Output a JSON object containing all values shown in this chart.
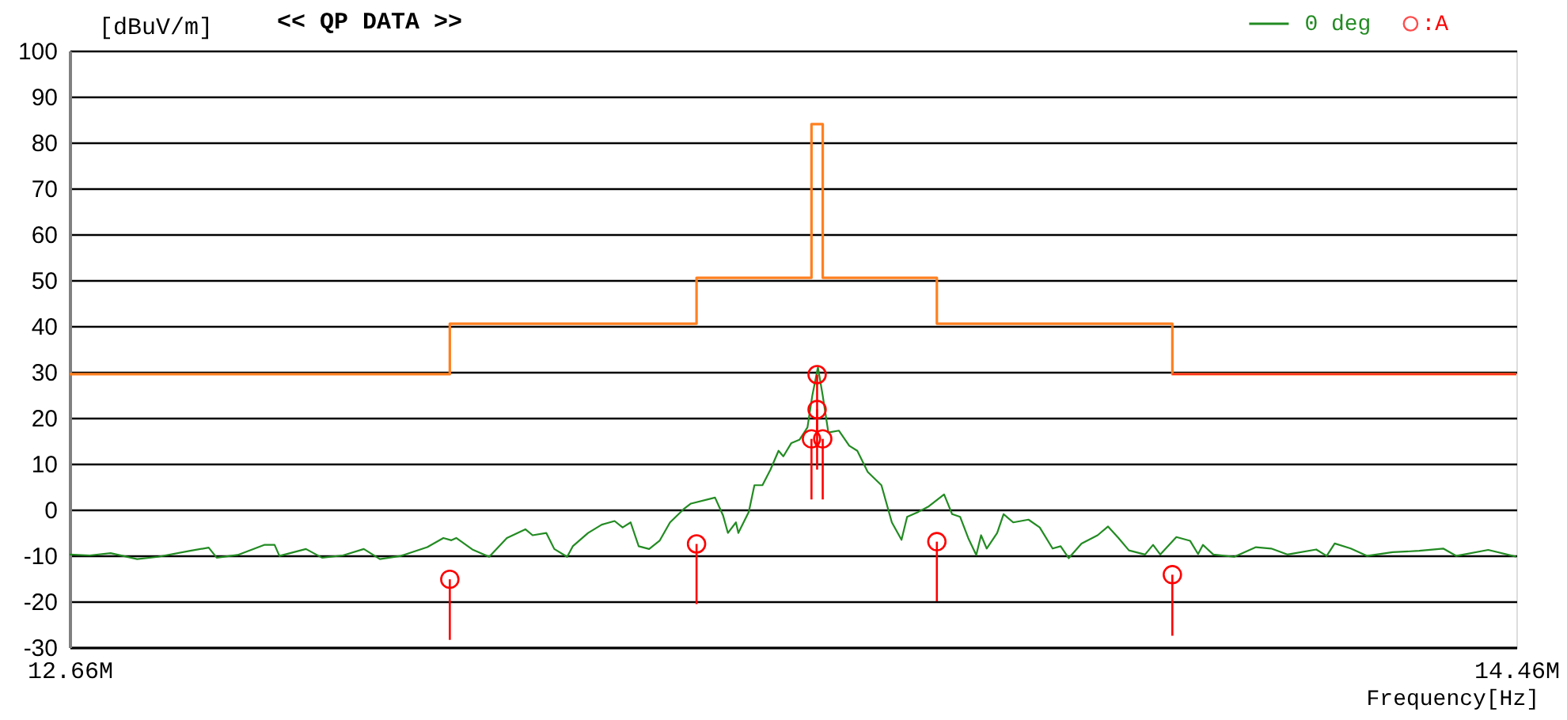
{
  "chart_data": {
    "type": "line",
    "title": "<< QP DATA >>",
    "ylabel": "[dBuV/m]",
    "xlabel": "Frequency[Hz]",
    "xlim": [
      12660000,
      14460000
    ],
    "xticks": [
      {
        "value": 12660000,
        "label": "12.66M"
      },
      {
        "value": 14460000,
        "label": "14.46M"
      }
    ],
    "ylim": [
      -30,
      100
    ],
    "yticks": [
      -30,
      -20,
      -10,
      0,
      10,
      20,
      30,
      40,
      50,
      60,
      70,
      80,
      90,
      100
    ],
    "grid": "y",
    "legend": "top right",
    "series": [
      {
        "type": "step",
        "color": "#ff8020",
        "x": [
          12660000,
          13133000,
          13440000,
          13583000,
          13597000,
          13739000,
          14032000,
          14460000
        ],
        "values": [
          29.5,
          40.5,
          50.5,
          84,
          50.5,
          40.5,
          29.5,
          29.5
        ]
      },
      {
        "color": "#ff3322",
        "x": [
          14032000,
          14460000
        ],
        "values": [
          29.5,
          29.5
        ]
      },
      {
        "name": "0 deg",
        "color": "#228b22",
        "x": [
          12660000,
          12685000,
          12711000,
          12744000,
          12770000,
          12810000,
          12833000,
          12843000,
          12869000,
          12902000,
          12915000,
          12921000,
          12954000,
          12974000,
          13000000,
          13026000,
          13046000,
          13072000,
          13105000,
          13125000,
          13135000,
          13141000,
          13161000,
          13182000,
          13204000,
          13227000,
          13236000,
          13253000,
          13263000,
          13279000,
          13286000,
          13305000,
          13322000,
          13338000,
          13348000,
          13358000,
          13368000,
          13381000,
          13394000,
          13407000,
          13424000,
          13433000,
          13463000,
          13473000,
          13479000,
          13489000,
          13492000,
          13505000,
          13512000,
          13522000,
          13532000,
          13542000,
          13548000,
          13558000,
          13568000,
          13578000,
          13584000,
          13591000,
          13597000,
          13604000,
          13617000,
          13630000,
          13640000,
          13653000,
          13670000,
          13683000,
          13695000,
          13702000,
          13716000,
          13729000,
          13748000,
          13758000,
          13768000,
          13778000,
          13788000,
          13794000,
          13801000,
          13814000,
          13822000,
          13834000,
          13853000,
          13867000,
          13883000,
          13893000,
          13903000,
          13919000,
          13939000,
          13952000,
          13965000,
          13978000,
          13998000,
          14008000,
          14017000,
          14037000,
          14054000,
          14064000,
          14070000,
          14083000,
          14109000,
          14136000,
          14155000,
          14175000,
          14211000,
          14224000,
          14234000,
          14254000,
          14274000,
          14306000,
          14339000,
          14369000,
          14385000,
          14425000,
          14460000
        ],
        "values": [
          -9.8,
          -10.0,
          -9.5,
          -10.8,
          -10.3,
          -9.0,
          -8.3,
          -10.5,
          -9.9,
          -7.7,
          -7.7,
          -10.1,
          -8.6,
          -10.5,
          -10.0,
          -8.6,
          -10.8,
          -10.1,
          -8.2,
          -6.2,
          -6.7,
          -6.2,
          -8.7,
          -10.3,
          -6.2,
          -4.3,
          -5.6,
          -5.1,
          -8.6,
          -10.3,
          -8.0,
          -5.1,
          -3.3,
          -2.5,
          -3.9,
          -2.8,
          -8.0,
          -8.6,
          -6.8,
          -2.8,
          0.1,
          1.3,
          2.6,
          -1.3,
          -5.1,
          -2.8,
          -5.1,
          -0.5,
          5.3,
          5.3,
          8.7,
          12.8,
          11.6,
          14.5,
          15.2,
          17.9,
          24.8,
          31.0,
          24.8,
          16.8,
          17.2,
          13.9,
          12.8,
          8.2,
          5.3,
          -2.8,
          -6.6,
          -1.6,
          -0.5,
          0.7,
          3.3,
          -1.0,
          -1.6,
          -6.2,
          -9.9,
          -5.6,
          -8.5,
          -5.1,
          -1.0,
          -2.8,
          -2.2,
          -3.9,
          -8.5,
          -8.0,
          -10.6,
          -7.4,
          -5.6,
          -3.7,
          -6.2,
          -8.9,
          -9.8,
          -7.7,
          -9.8,
          -6.0,
          -6.8,
          -9.7,
          -7.7,
          -9.8,
          -10.3,
          -8.2,
          -8.5,
          -9.8,
          -8.7,
          -10.1,
          -7.4,
          -8.5,
          -10.1,
          -9.3,
          -9.0,
          -8.5,
          -10.1,
          -8.8,
          -10.3
        ]
      },
      {
        "type": "scatter",
        "name": ":A",
        "color": "#ff0000",
        "marker": "circle",
        "x": [
          13133000,
          13440000,
          13583000,
          13590000,
          13590000,
          13597000,
          13739000,
          14032000
        ],
        "values": [
          -15.2,
          -7.5,
          15.4,
          29.4,
          21.8,
          15.4,
          -7.0,
          -14.2
        ],
        "errors": [
          [
            -28.4,
            -15.2
          ],
          [
            -20.6,
            -7.5
          ],
          [
            2.2,
            15.4
          ],
          [
            16.3,
            29.4
          ],
          [
            8.7,
            21.8
          ],
          [
            2.2,
            15.4
          ],
          [
            -20.0,
            -7.0
          ],
          [
            -27.5,
            -14.2
          ]
        ]
      }
    ]
  }
}
